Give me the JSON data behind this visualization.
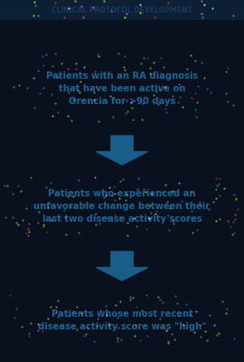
{
  "background_color": "#09111f",
  "title": "CLINICAL PROTOCOL DEVELOPMENT",
  "title_color": "#1a3a5c",
  "title_fontsize": 5.5,
  "title_bg_color": "#0d1f35",
  "arrow_color": "#1a5c8a",
  "text_color": "#1e6494",
  "box1_text": "Patients with an RA diagnosis\nthat have been active on\nOrencia for >90 days",
  "box2_text": "Patients who experienced an\nunfavorable change between their\nlast two disease activity scores",
  "box3_text": "Patients whose most recent\ndisease activity score was \"high\"",
  "text_fontsize": 7.2,
  "glitter_colors": [
    "#ff69b4",
    "#00bfff",
    "#ffff00",
    "#ff4500",
    "#adff2f",
    "#ee82ee",
    "#ffffff"
  ]
}
